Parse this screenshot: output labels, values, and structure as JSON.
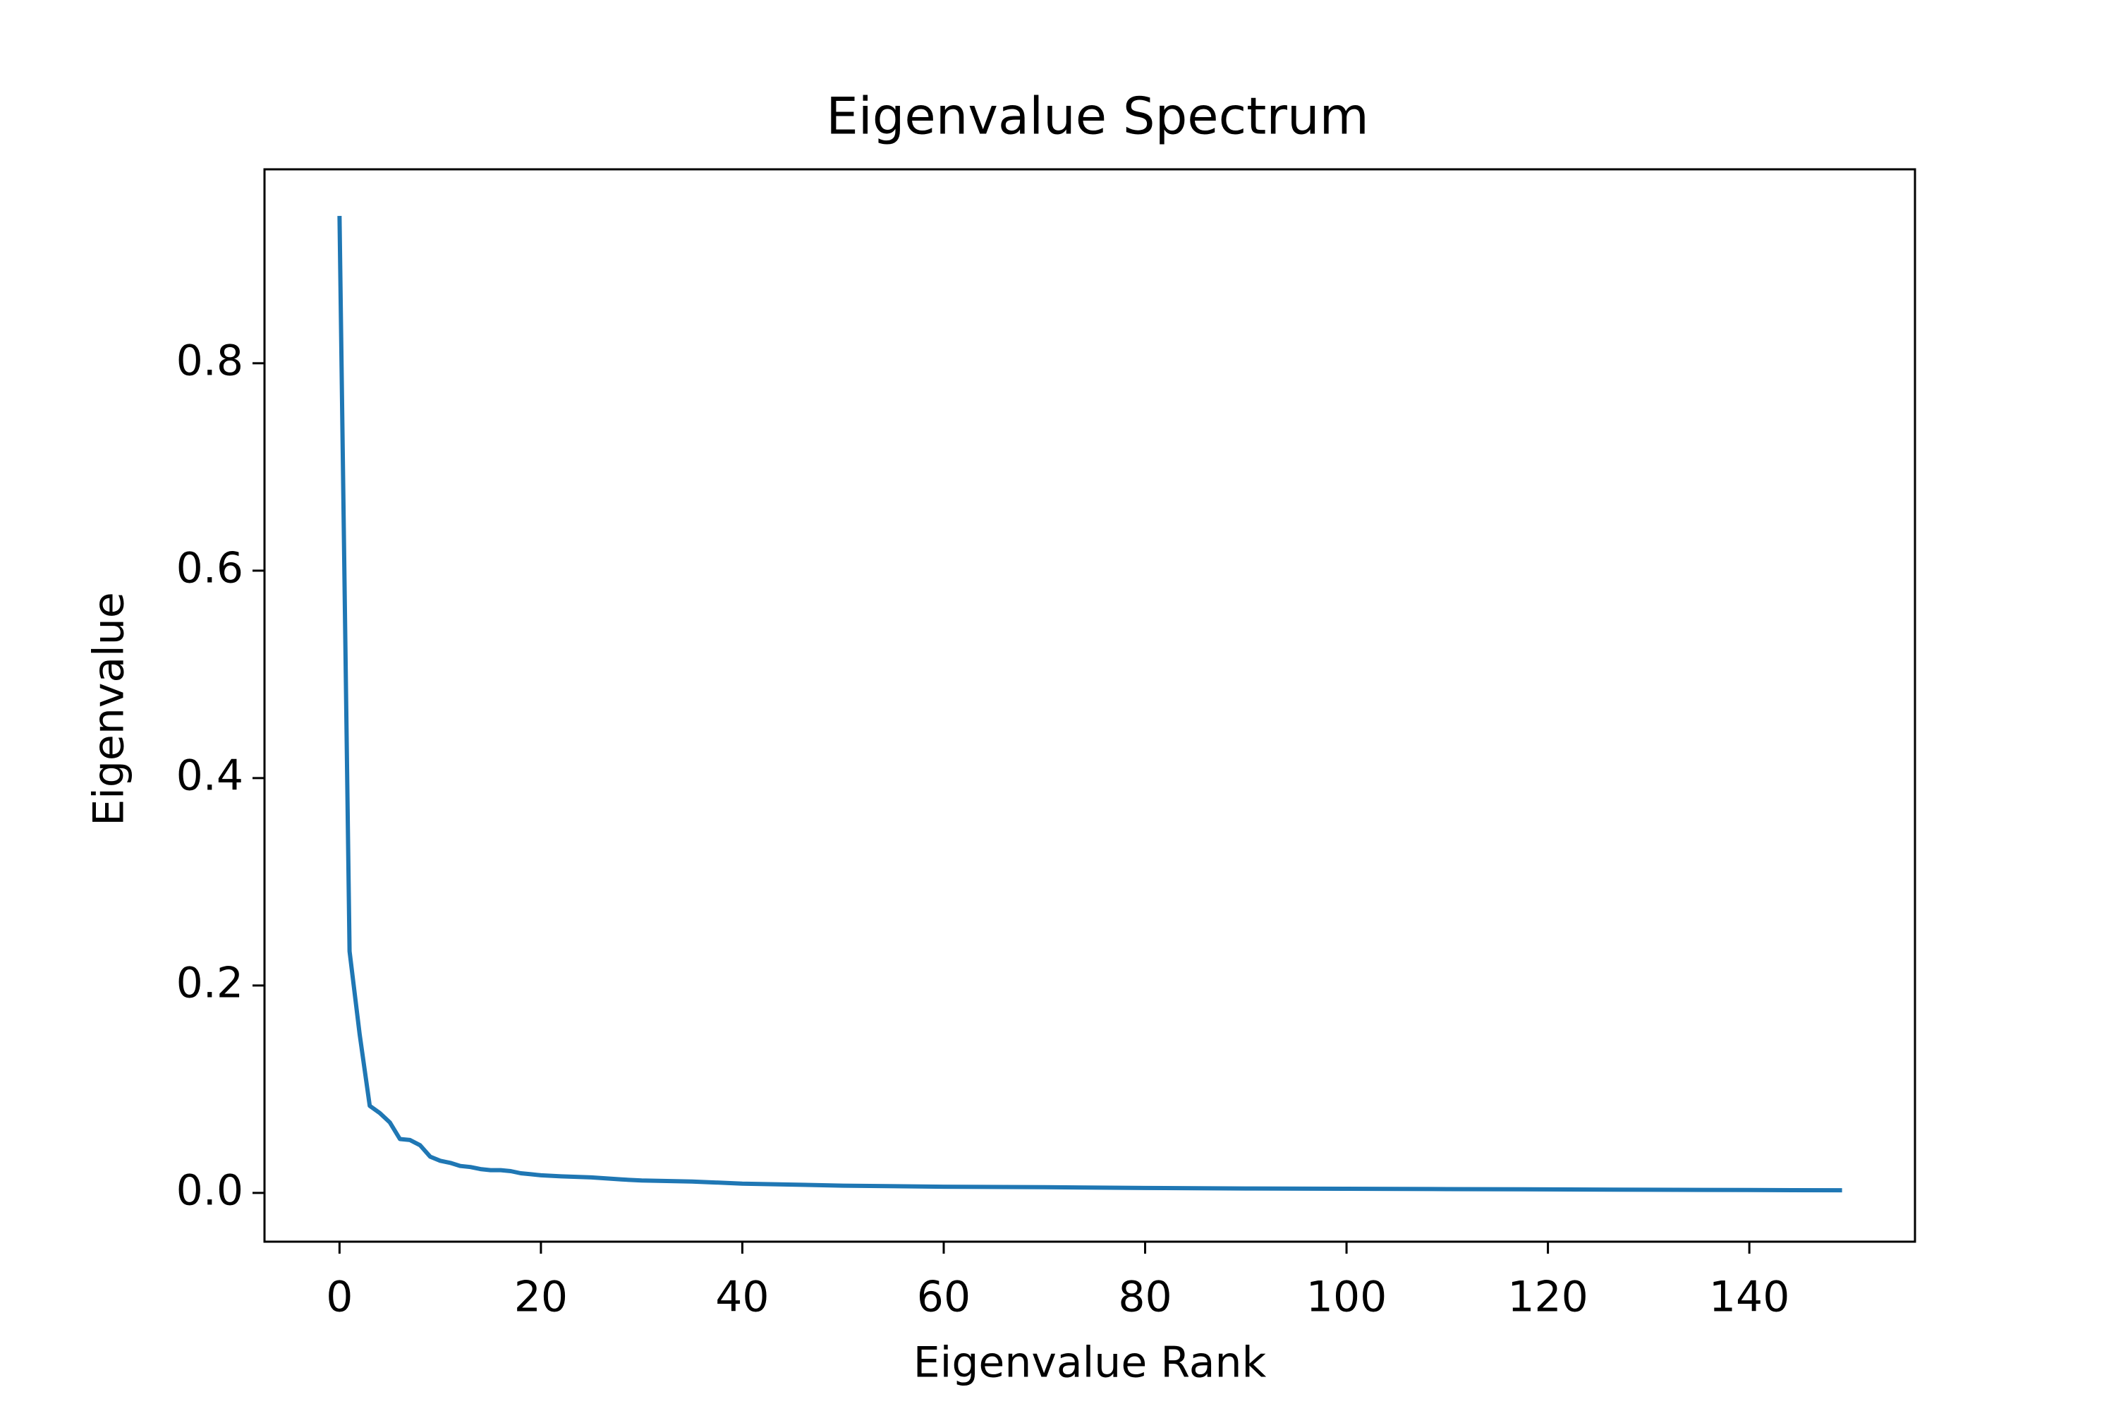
{
  "chart_data": {
    "type": "line",
    "title": "Eigenvalue Spectrum",
    "xlabel": "Eigenvalue Rank",
    "ylabel": "Eigenvalue",
    "xlim": [
      -7.45,
      156.45
    ],
    "ylim": [
      -0.047,
      0.987
    ],
    "xticks": [
      0,
      20,
      40,
      60,
      80,
      100,
      120,
      140
    ],
    "xtick_labels": [
      "0",
      "20",
      "40",
      "60",
      "80",
      "100",
      "120",
      "140"
    ],
    "yticks": [
      0.0,
      0.2,
      0.4,
      0.6,
      0.8
    ],
    "ytick_labels": [
      "0.0",
      "0.2",
      "0.4",
      "0.6",
      "0.8"
    ],
    "grid": false,
    "legend": "none",
    "series": [
      {
        "color": "#1f77b4",
        "x": [
          0,
          1,
          2,
          3,
          4,
          5,
          6,
          7,
          8,
          9,
          10,
          11,
          12,
          13,
          14,
          15,
          16,
          17,
          18,
          19,
          20,
          22,
          25,
          28,
          30,
          35,
          40,
          45,
          50,
          60,
          70,
          80,
          90,
          100,
          110,
          120,
          130,
          140,
          149
        ],
        "values": [
          0.94,
          0.233,
          0.153,
          0.084,
          0.077,
          0.068,
          0.052,
          0.051,
          0.046,
          0.035,
          0.031,
          0.029,
          0.026,
          0.025,
          0.023,
          0.022,
          0.022,
          0.021,
          0.019,
          0.018,
          0.017,
          0.016,
          0.015,
          0.013,
          0.012,
          0.011,
          0.009,
          0.008,
          0.007,
          0.006,
          0.0055,
          0.0048,
          0.0043,
          0.004,
          0.0037,
          0.0034,
          0.0031,
          0.0028,
          0.0026
        ]
      }
    ]
  }
}
